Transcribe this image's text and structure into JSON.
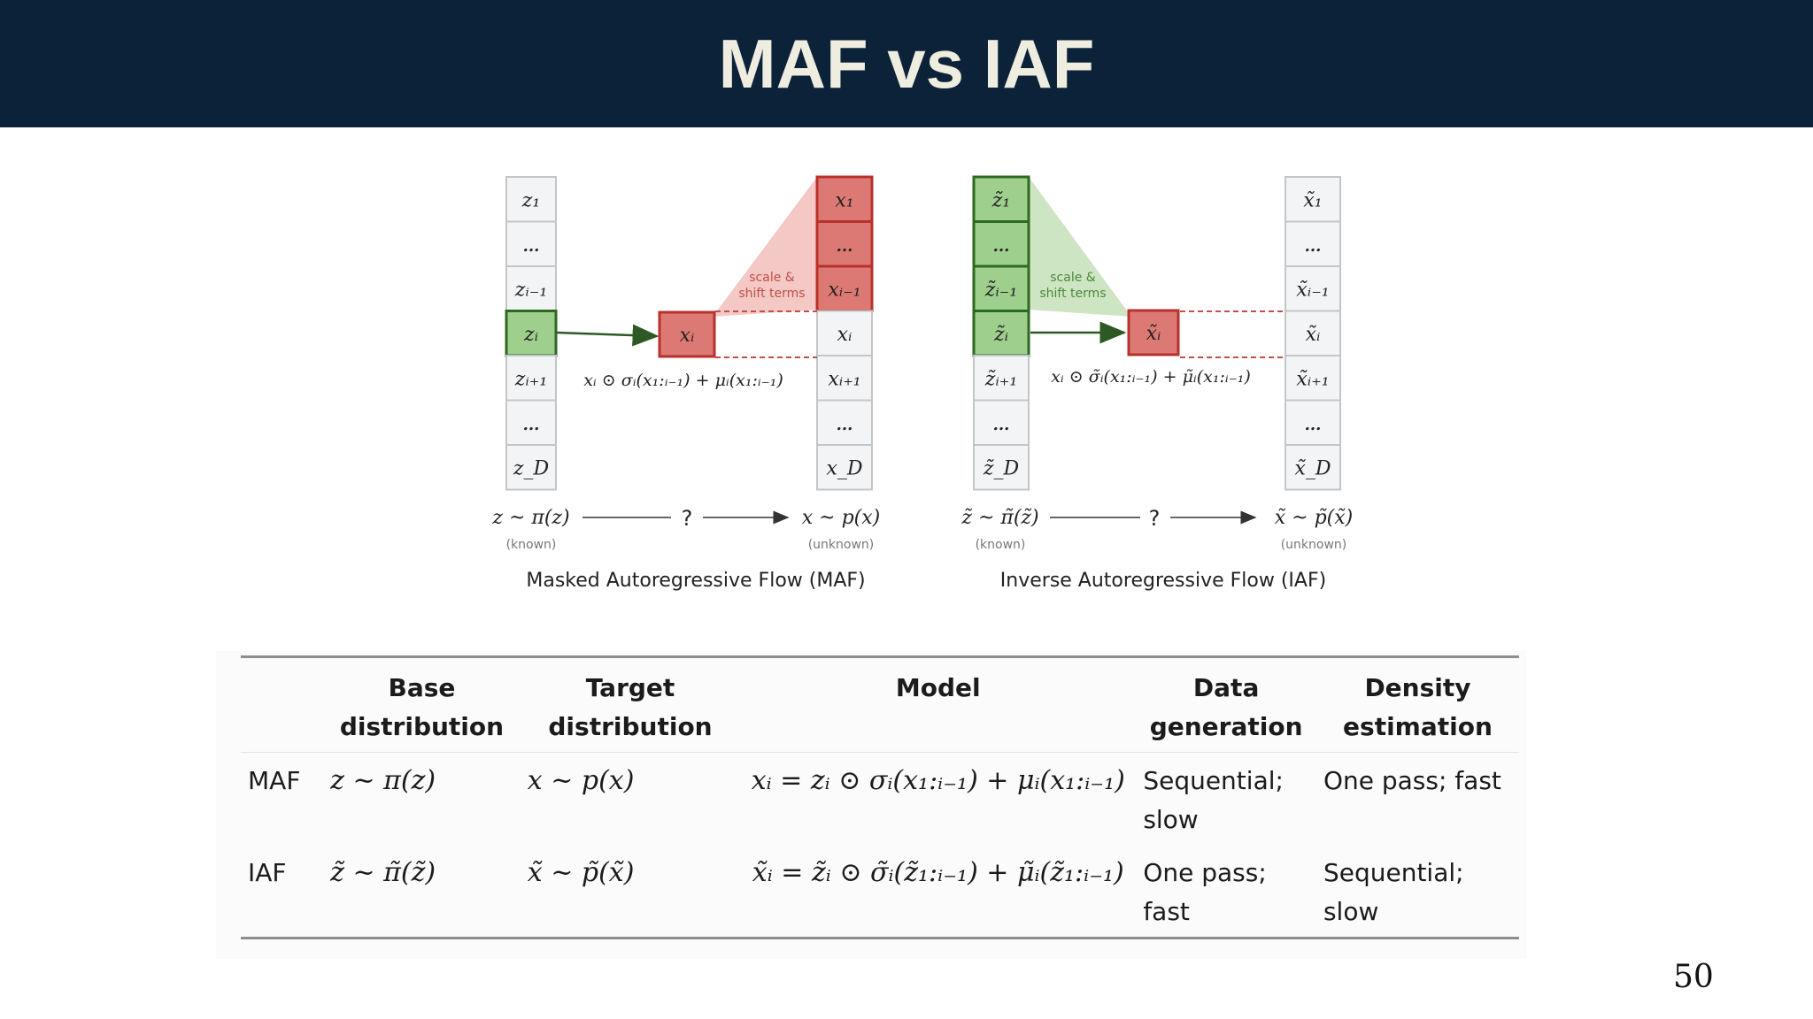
{
  "slide": {
    "title": "MAF vs IAF",
    "page_number": "50"
  },
  "colors": {
    "header_bg": "#0b2239",
    "title_text": "#efece0",
    "red_cell": "#dd7974",
    "green_cell": "#9fcf8d",
    "red_cone": "#f2c2bf",
    "green_cone": "#c9e2bc"
  },
  "maf": {
    "left_column": [
      "z₁",
      "...",
      "zᵢ₋₁",
      "zᵢ",
      "zᵢ₊₁",
      "...",
      "z_D"
    ],
    "right_column": [
      "x₁",
      "...",
      "xᵢ₋₁",
      "xᵢ",
      "xᵢ₊₁",
      "...",
      "x_D"
    ],
    "middle_node": "xᵢ",
    "cone_label": [
      "scale &",
      "shift terms"
    ],
    "formula": "xᵢ ⊙ σᵢ(x₁:ᵢ₋₁) + μᵢ(x₁:ᵢ₋₁)",
    "base": "z ~ π(z)",
    "target": "x ~ p(x)",
    "question": "?",
    "known": "(known)",
    "unknown": "(unknown)",
    "caption": "Masked Autoregressive Flow (MAF)"
  },
  "iaf": {
    "left_column": [
      "z̃₁",
      "...",
      "z̃ᵢ₋₁",
      "z̃ᵢ",
      "z̃ᵢ₊₁",
      "...",
      "z̃_D"
    ],
    "right_column": [
      "x̃₁",
      "...",
      "x̃ᵢ₋₁",
      "x̃ᵢ",
      "x̃ᵢ₊₁",
      "...",
      "x̃_D"
    ],
    "middle_node": "x̃ᵢ",
    "cone_label": [
      "scale &",
      "shift terms"
    ],
    "formula": "xᵢ ⊙ σ̃ᵢ(x₁:ᵢ₋₁) + μ̃ᵢ(x₁:ᵢ₋₁)",
    "base": "z̃ ~ π̃(z̃)",
    "target": "x̃ ~ p̃(x̃)",
    "question": "?",
    "known": "(known)",
    "unknown": "(unknown)",
    "caption": "Inverse Autoregressive Flow (IAF)"
  },
  "table": {
    "headers": {
      "base_line1": "Base",
      "base_line2": "distribution",
      "target_line1": "Target",
      "target_line2": "distribution",
      "model": "Model",
      "data_line1": "Data",
      "data_line2": "generation",
      "density_line1": "Density",
      "density_line2": "estimation"
    },
    "rows": [
      {
        "label": "MAF",
        "base": "z ~ π(z)",
        "target": "x ~ p(x)",
        "model": "xᵢ = zᵢ ⊙ σᵢ(x₁:ᵢ₋₁) + μᵢ(x₁:ᵢ₋₁)",
        "data_generation": "Sequential; slow",
        "density_estimation": "One pass; fast"
      },
      {
        "label": "IAF",
        "base": "z̃ ~ π̃(z̃)",
        "target": "x̃ ~ p̃(x̃)",
        "model": "x̃ᵢ = z̃ᵢ ⊙ σ̃ᵢ(z̃₁:ᵢ₋₁) + μ̃ᵢ(z̃₁:ᵢ₋₁)",
        "data_generation": "One pass; fast",
        "density_estimation": "Sequential; slow"
      }
    ]
  }
}
